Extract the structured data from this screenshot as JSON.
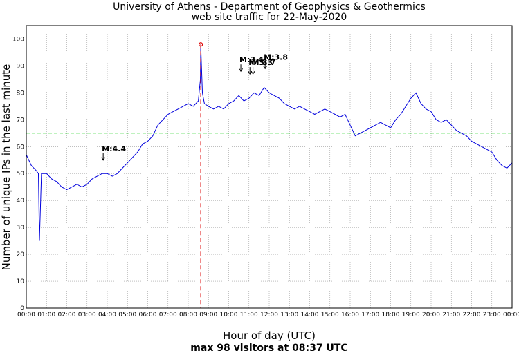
{
  "chart_data": {
    "type": "line",
    "title": "University of Athens - Department of Geophysics & Geothermics",
    "subtitle": "web site traffic for 22-May-2020",
    "xlabel": "Hour of day (UTC)",
    "ylabel": "Number of unique IPs in the last minute",
    "footer": "max 98 visitors at 08:37 UTC",
    "xlim": [
      0,
      24
    ],
    "ylim": [
      0,
      105
    ],
    "grid": true,
    "x_ticks": [
      "00:00",
      "01:00",
      "02:00",
      "03:00",
      "04:00",
      "05:00",
      "06:00",
      "07:00",
      "08:00",
      "09:00",
      "10:00",
      "11:00",
      "12:00",
      "13:00",
      "14:00",
      "15:00",
      "16:00",
      "17:00",
      "18:00",
      "19:00",
      "20:00",
      "21:00",
      "22:00",
      "23:00",
      "00:00"
    ],
    "y_ticks": [
      0,
      10,
      20,
      30,
      40,
      50,
      60,
      70,
      80,
      90,
      100
    ],
    "average_line": {
      "y": 65,
      "color": "#00cc00",
      "style": "dashed"
    },
    "max_point": {
      "time": "08:37",
      "hour": 8.62,
      "value": 98,
      "color": "#dd0000"
    },
    "series": [
      {
        "color": "#0000dd",
        "x": [
          0,
          0.25,
          0.5,
          0.6,
          0.65,
          0.75,
          1,
          1.25,
          1.5,
          1.75,
          2,
          2.25,
          2.5,
          2.75,
          3,
          3.25,
          3.5,
          3.75,
          4,
          4.25,
          4.5,
          4.75,
          5,
          5.25,
          5.5,
          5.75,
          6,
          6.25,
          6.5,
          6.75,
          7,
          7.25,
          7.5,
          7.75,
          8,
          8.25,
          8.5,
          8.6,
          8.62,
          8.7,
          8.8,
          9,
          9.25,
          9.5,
          9.75,
          10,
          10.25,
          10.5,
          10.75,
          11,
          11.25,
          11.5,
          11.75,
          12,
          12.25,
          12.5,
          12.75,
          13,
          13.25,
          13.5,
          13.75,
          14,
          14.25,
          14.5,
          14.75,
          15,
          15.25,
          15.5,
          15.75,
          16,
          16.25,
          16.5,
          16.75,
          17,
          17.25,
          17.5,
          17.75,
          18,
          18.25,
          18.5,
          18.75,
          19,
          19.25,
          19.5,
          19.75,
          20,
          20.25,
          20.5,
          20.75,
          21,
          21.25,
          21.5,
          21.75,
          22,
          22.25,
          22.5,
          22.75,
          23,
          23.25,
          23.5,
          23.75,
          24
        ],
        "y": [
          57,
          53,
          51,
          50,
          25,
          50,
          50,
          48,
          47,
          45,
          44,
          45,
          46,
          45,
          46,
          48,
          49,
          50,
          50,
          49,
          50,
          52,
          54,
          56,
          58,
          61,
          62,
          64,
          68,
          70,
          72,
          73,
          74,
          75,
          76,
          75,
          77,
          85,
          98,
          80,
          76,
          75,
          74,
          75,
          74,
          76,
          77,
          79,
          77,
          78,
          80,
          79,
          82,
          80,
          79,
          78,
          76,
          75,
          74,
          75,
          74,
          73,
          72,
          73,
          74,
          73,
          72,
          71,
          72,
          68,
          64,
          65,
          66,
          67,
          68,
          69,
          68,
          67,
          70,
          72,
          75,
          78,
          80,
          76,
          74,
          73,
          70,
          69,
          70,
          68,
          66,
          65,
          64,
          62,
          61,
          60,
          59,
          58,
          55,
          53,
          52,
          54
        ]
      }
    ],
    "annotations": [
      {
        "label": "M:4.4",
        "hour": 3.8,
        "arrow_tip": 55
      },
      {
        "label": "M:3.4",
        "hour": 10.6,
        "arrow_tip": 88
      },
      {
        "label": "M:3.3",
        "hour": 11.05,
        "arrow_tip": 87
      },
      {
        "label": "M:3.7",
        "hour": 11.2,
        "arrow_tip": 87
      },
      {
        "label": "M:3.8",
        "hour": 11.8,
        "arrow_tip": 89
      }
    ]
  }
}
